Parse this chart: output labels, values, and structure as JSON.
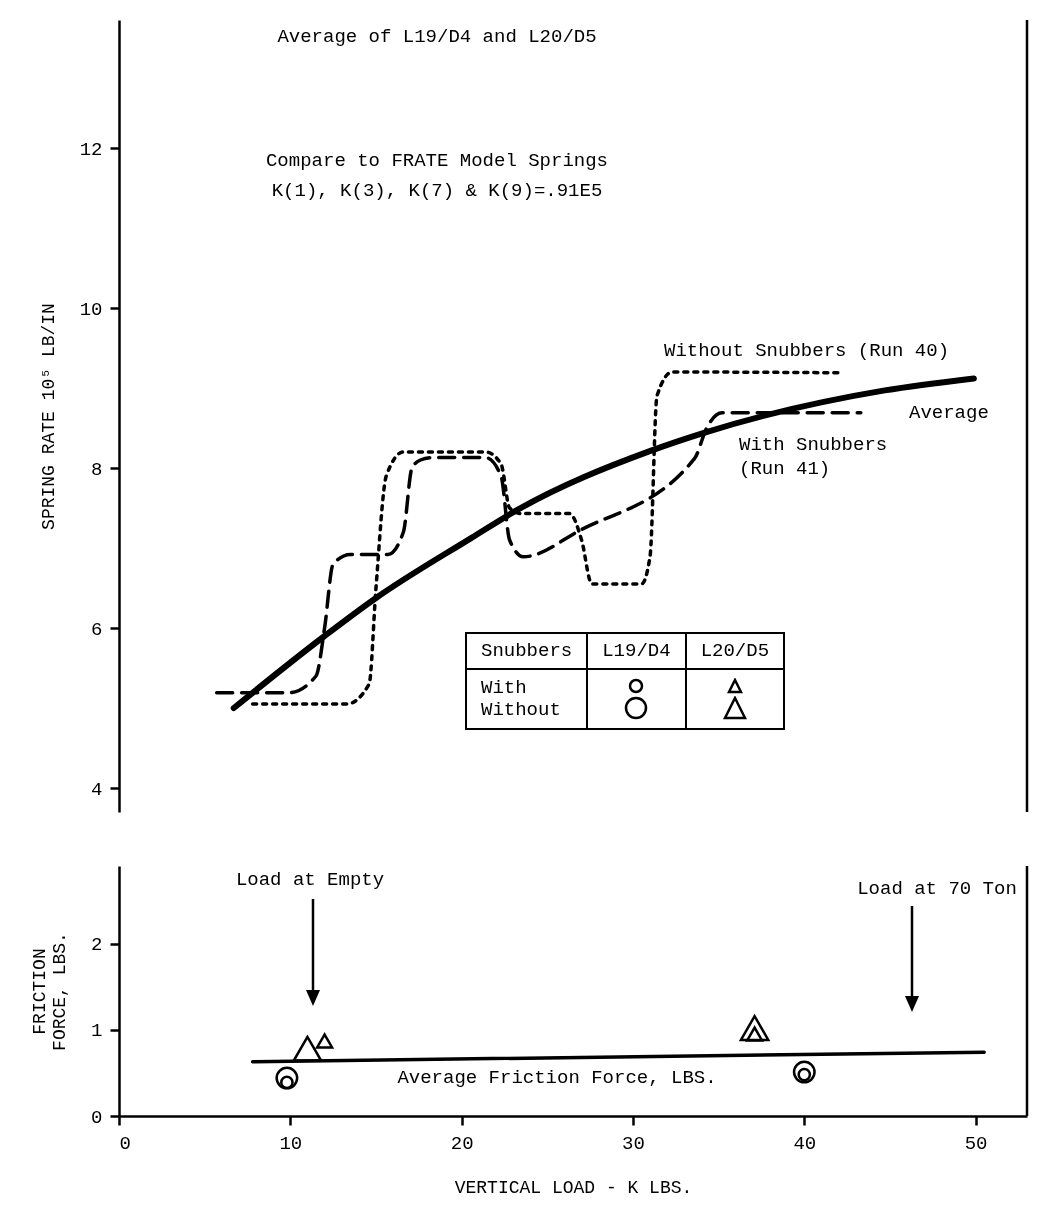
{
  "chart_data": [
    {
      "type": "line",
      "ylabel": "SPRING RATE 10⁵ LB/IN",
      "xlim": [
        0,
        53
      ],
      "ylim": [
        3.7,
        13.6
      ],
      "yticks": [
        4,
        6,
        8,
        10,
        12
      ],
      "tick_labels": "y",
      "annotations": [
        "Average of L19/D4 and L20/D5",
        "Compare to FRATE Model Springs",
        "K(1), K(3), K(7) & K(9)=.91E5",
        "Snubbers",
        "L19/D4",
        "L20/D5",
        "With",
        "Without"
      ],
      "series": [
        {
          "name": "Without Snubbers (Run 40)",
          "color": "#000000",
          "line_style": "dotted",
          "x": [
            7.8,
            13.3,
            14.6,
            15.0,
            15.6,
            16.6,
            21.4,
            22.3,
            22.8,
            23.5,
            26.3,
            27.0,
            27.6,
            30.5,
            31.0,
            31.4,
            32.3,
            42.2
          ],
          "values": [
            5.05,
            5.05,
            5.3,
            6.5,
            7.9,
            8.2,
            8.2,
            8.05,
            7.5,
            7.43,
            7.43,
            7.1,
            6.55,
            6.55,
            6.9,
            8.9,
            9.2,
            9.19
          ]
        },
        {
          "name": "With Snubbers\n(Run 41)",
          "color": "#000000",
          "line_style": "dashed",
          "x": [
            5.7,
            9.9,
            11.5,
            12.0,
            12.5,
            13.5,
            15.7,
            16.6,
            17.1,
            17.6,
            18.2,
            21.4,
            22.3,
            22.8,
            23.6,
            26.9,
            33.6,
            34.3,
            35.2,
            43.3
          ],
          "values": [
            5.19,
            5.19,
            5.4,
            6.0,
            6.8,
            6.92,
            6.92,
            7.2,
            8.0,
            8.1,
            8.13,
            8.13,
            7.9,
            7.1,
            6.89,
            7.22,
            8.12,
            8.5,
            8.69,
            8.69
          ]
        },
        {
          "name": "Average",
          "color": "#000000",
          "line_style": "solid",
          "x": [
            6.7,
            12.0,
            14.9,
            20.6,
            23.2,
            31.1,
            34.0,
            44.7,
            49.9
          ],
          "values": [
            5.0,
            5.9,
            6.36,
            7.13,
            7.47,
            8.22,
            8.43,
            8.97,
            9.12
          ]
        }
      ]
    },
    {
      "type": "bubble",
      "xlabel": "VERTICAL LOAD - K LBS.",
      "ylabel": "FRICTION\nFORCE, LBS.",
      "xlim": [
        0,
        53
      ],
      "ylim": [
        0,
        2.9
      ],
      "xticks": [
        0,
        10,
        20,
        30,
        40,
        50
      ],
      "yticks": [
        0,
        1,
        2
      ],
      "annotations": [
        "Load at Empty",
        "Load at 70 Ton"
      ],
      "series": [
        {
          "name": "Average Friction Force, LBS.",
          "type": "line",
          "line_style": "solid",
          "color": "#000000",
          "x": [
            7.8,
            50.5
          ],
          "values": [
            0.63,
            0.74
          ]
        },
        {
          "marker": "circle",
          "color": "#000000",
          "x": [
            9.8,
            40.0
          ],
          "values": [
            0.39,
            0.48
          ],
          "sizes": [
            0.3,
            0.3
          ]
        },
        {
          "marker": "circle",
          "color": "#000000",
          "x": [
            9.8,
            40.0
          ],
          "values": [
            0.44,
            0.51
          ],
          "sizes": [
            1,
            1
          ]
        },
        {
          "marker": "triangle",
          "color": "#000000",
          "x": [
            12.0,
            37.1
          ],
          "values": [
            0.87,
            0.95
          ],
          "sizes": [
            0.3,
            0.3
          ]
        },
        {
          "marker": "triangle",
          "color": "#000000",
          "x": [
            11.0,
            37.1
          ],
          "values": [
            0.78,
            1.02
          ],
          "sizes": [
            1,
            1
          ]
        }
      ]
    }
  ]
}
